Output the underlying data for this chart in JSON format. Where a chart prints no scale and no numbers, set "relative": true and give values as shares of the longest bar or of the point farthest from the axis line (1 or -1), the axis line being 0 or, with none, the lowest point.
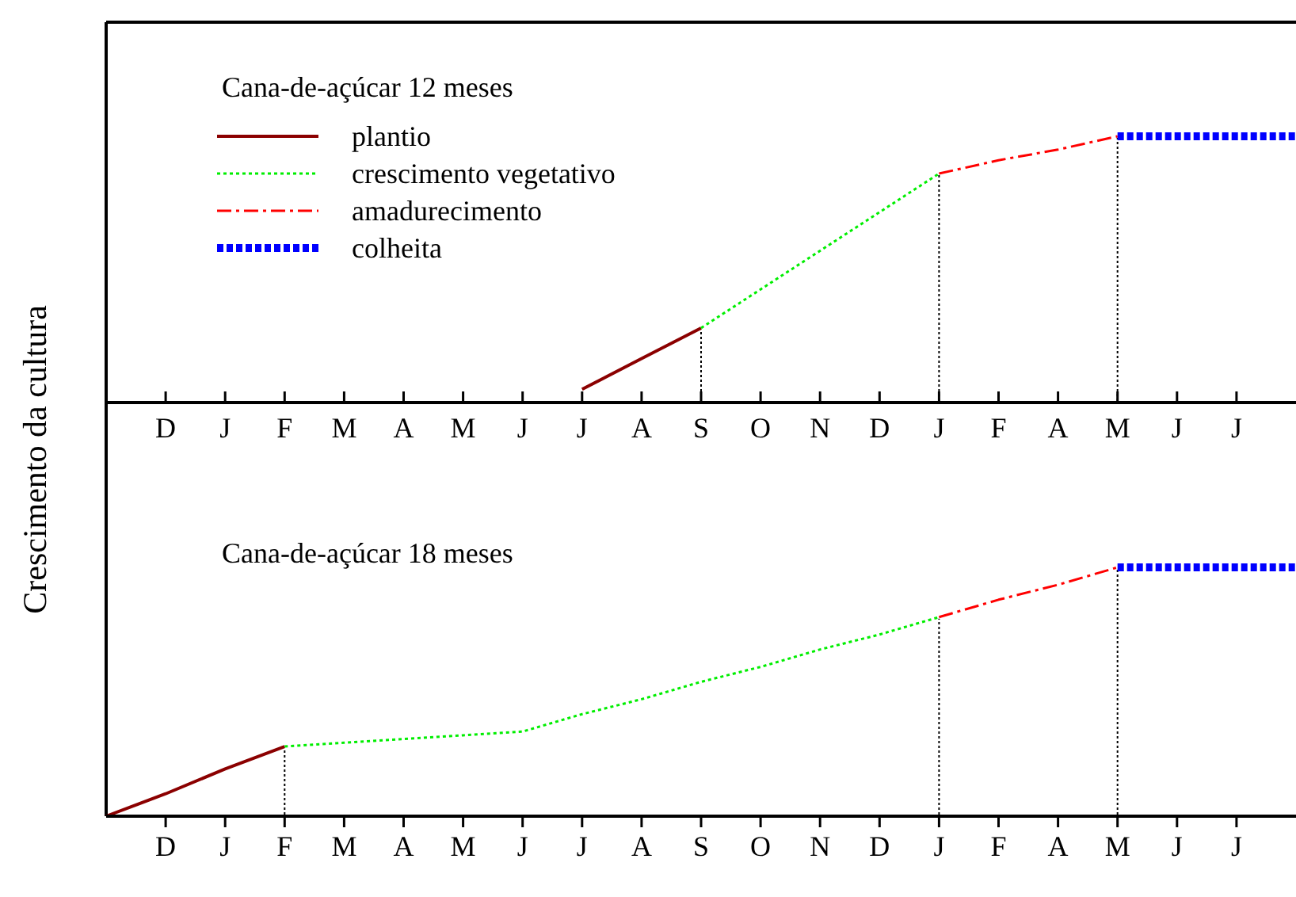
{
  "chart_data": [
    {
      "type": "line",
      "title": "Cana-de-açúcar 12 meses",
      "ylabel": "Crescimento da cultura",
      "relative": true,
      "legend": "top left",
      "categories": [
        null,
        "D",
        "J",
        "F",
        "M",
        "A",
        "M",
        "J",
        "J",
        "A",
        "S",
        "O",
        "N",
        "D",
        "J",
        "F",
        "A",
        "M",
        "J",
        "J",
        null
      ],
      "series": [
        {
          "name": "plantio",
          "color": "#8b0000",
          "line_style": "solid",
          "values": [
            null,
            null,
            null,
            null,
            null,
            null,
            null,
            null,
            0.05,
            0.165,
            0.28,
            null,
            null,
            null,
            null,
            null,
            null,
            null,
            null,
            null,
            null
          ]
        },
        {
          "name": "crescimento vegetativo",
          "color": "#00ee00",
          "line_style": "dotted",
          "values": [
            null,
            null,
            null,
            null,
            null,
            null,
            null,
            null,
            null,
            null,
            0.28,
            0.425,
            0.57,
            0.715,
            0.86,
            null,
            null,
            null,
            null,
            null,
            null
          ]
        },
        {
          "name": "amadurecimento",
          "color": "#ff0000",
          "line_style": "dashed",
          "values": [
            null,
            null,
            null,
            null,
            null,
            null,
            null,
            null,
            null,
            null,
            null,
            null,
            null,
            null,
            0.86,
            0.91,
            0.95,
            1,
            null,
            null,
            null
          ]
        },
        {
          "name": "colheita",
          "color": "#0000ff",
          "line_style": "dotted",
          "values": [
            null,
            null,
            null,
            null,
            null,
            null,
            null,
            null,
            null,
            null,
            null,
            null,
            null,
            null,
            null,
            null,
            null,
            1,
            1,
            1,
            1
          ]
        }
      ]
    },
    {
      "type": "line",
      "title": "Cana-de-açúcar 18 meses",
      "relative": true,
      "categories": [
        null,
        "D",
        "J",
        "F",
        "M",
        "A",
        "M",
        "J",
        "J",
        "A",
        "S",
        "O",
        "N",
        "D",
        "J",
        "F",
        "A",
        "M",
        "J",
        "J",
        null
      ],
      "series": [
        {
          "color": "#8b0000",
          "line_style": "solid",
          "values": [
            0,
            0.09,
            0.19,
            0.28,
            null,
            null,
            null,
            null,
            null,
            null,
            null,
            null,
            null,
            null,
            null,
            null,
            null,
            null,
            null,
            null,
            null
          ]
        },
        {
          "color": "#00ee00",
          "line_style": "dotted",
          "values": [
            null,
            null,
            null,
            0.28,
            0.295,
            0.31,
            0.325,
            0.34,
            0.41,
            0.47,
            0.54,
            0.6,
            0.67,
            0.73,
            0.8,
            null,
            null,
            null,
            null,
            null,
            null
          ]
        },
        {
          "color": "#ff0000",
          "line_style": "dashed",
          "values": [
            null,
            null,
            null,
            null,
            null,
            null,
            null,
            null,
            null,
            null,
            null,
            null,
            null,
            null,
            0.8,
            0.87,
            0.93,
            1,
            null,
            null,
            null
          ]
        },
        {
          "color": "#0000ff",
          "line_style": "dotted",
          "values": [
            null,
            null,
            null,
            null,
            null,
            null,
            null,
            null,
            null,
            null,
            null,
            null,
            null,
            null,
            null,
            null,
            null,
            1,
            1,
            1,
            1
          ]
        }
      ]
    }
  ]
}
